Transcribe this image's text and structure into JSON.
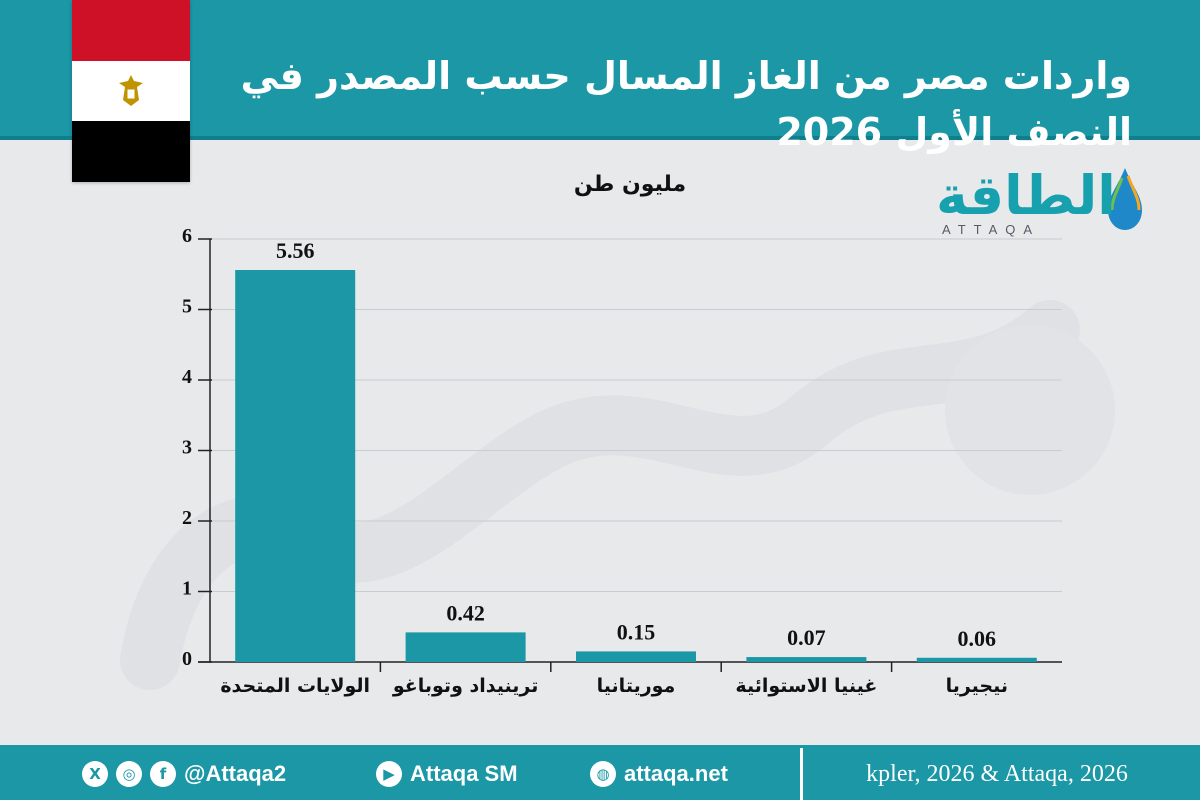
{
  "header": {
    "title": "واردات مصر من الغاز المسال حسب المصدر في النصف الأول 2026"
  },
  "logo": {
    "arabic": "الطاقة",
    "latin": "ATTAQA"
  },
  "colors": {
    "brand_teal": "#1b97a6",
    "bar": "#1b97a6",
    "background": "#e8e9eb"
  },
  "chart_data": {
    "type": "bar",
    "unit_label": "مليون طن",
    "categories": [
      "الولايات المتحدة",
      "ترينيداد وتوباغو",
      "موريتانيا",
      "غينيا الاستوائية",
      "نيجيريا"
    ],
    "values": [
      5.56,
      0.42,
      0.15,
      0.07,
      0.06
    ],
    "value_labels": [
      "5.56",
      "0.42",
      "0.15",
      "0.07",
      "0.06"
    ],
    "y_ticks": [
      "0",
      "1",
      "2",
      "3",
      "4",
      "5",
      "6"
    ],
    "ylim": [
      0,
      6
    ],
    "grid": true
  },
  "footer": {
    "social_handle": "@Attaqa2",
    "youtube_handle": "Attaqa SM",
    "website": "attaqa.net",
    "source": "kpler, 2026 & Attaqa, 2026",
    "icons": [
      "x-icon",
      "instagram-icon",
      "facebook-icon",
      "youtube-icon",
      "globe-icon"
    ]
  }
}
